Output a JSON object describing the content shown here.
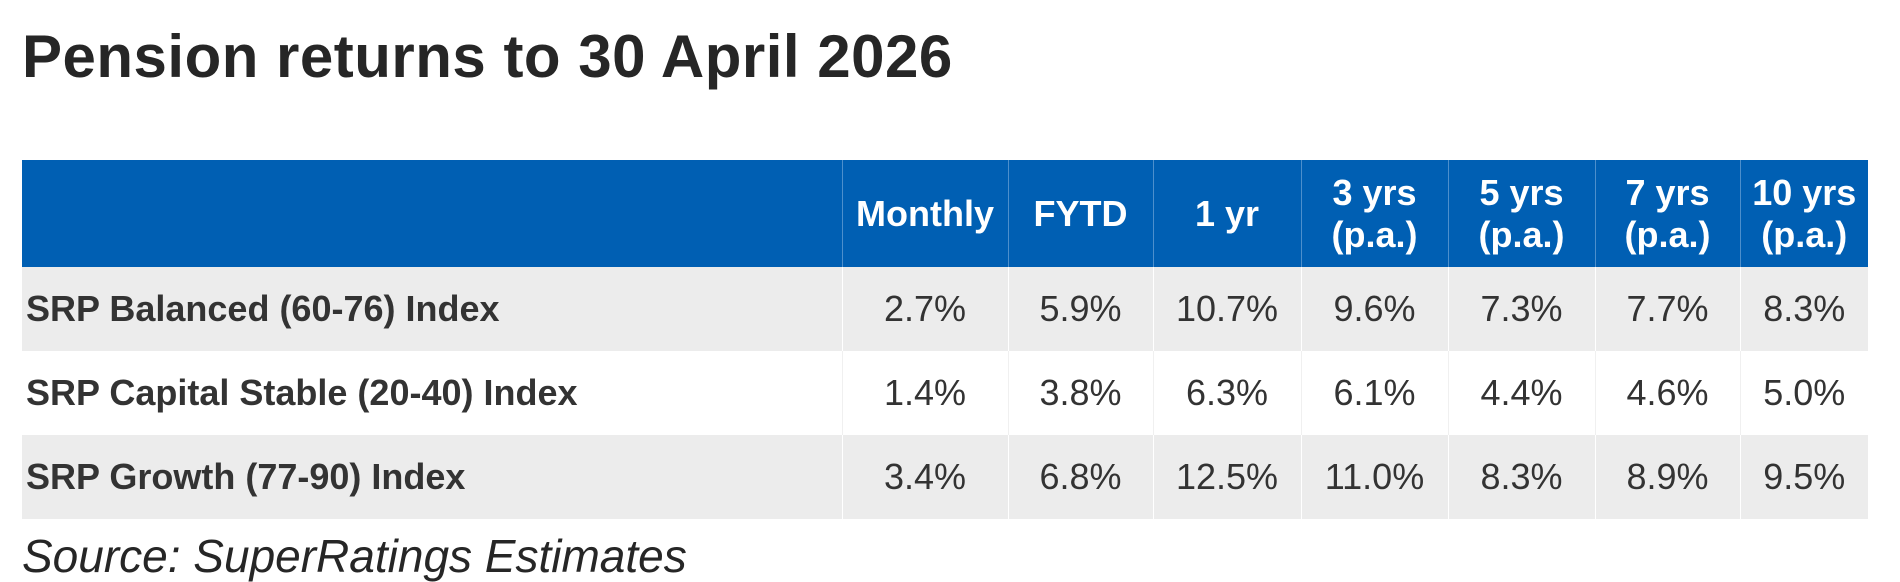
{
  "title": "Pension returns to 30 April 2026",
  "table": {
    "header": [
      [],
      [
        "Monthly"
      ],
      [
        "FYTD"
      ],
      [
        "1 yr"
      ],
      [
        "3 yrs",
        "(p.a.)"
      ],
      [
        "5 yrs",
        "(p.a.)"
      ],
      [
        "7 yrs",
        "(p.a.)"
      ],
      [
        "10 yrs",
        "(p.a.)"
      ]
    ],
    "rows": [
      [
        "SRP Balanced (60-76) Index",
        "2.7%",
        "5.9%",
        "10.7%",
        "9.6%",
        "7.3%",
        "7.7%",
        "8.3%"
      ],
      [
        "SRP Capital Stable (20-40) Index",
        "1.4%",
        "3.8%",
        "6.3%",
        "6.1%",
        "4.4%",
        "4.6%",
        "5.0%"
      ],
      [
        "SRP Growth (77-90) Index",
        "3.4%",
        "6.8%",
        "12.5%",
        "11.0%",
        "8.3%",
        "8.9%",
        "9.5%"
      ]
    ]
  },
  "source": "Source: SuperRatings Estimates"
}
